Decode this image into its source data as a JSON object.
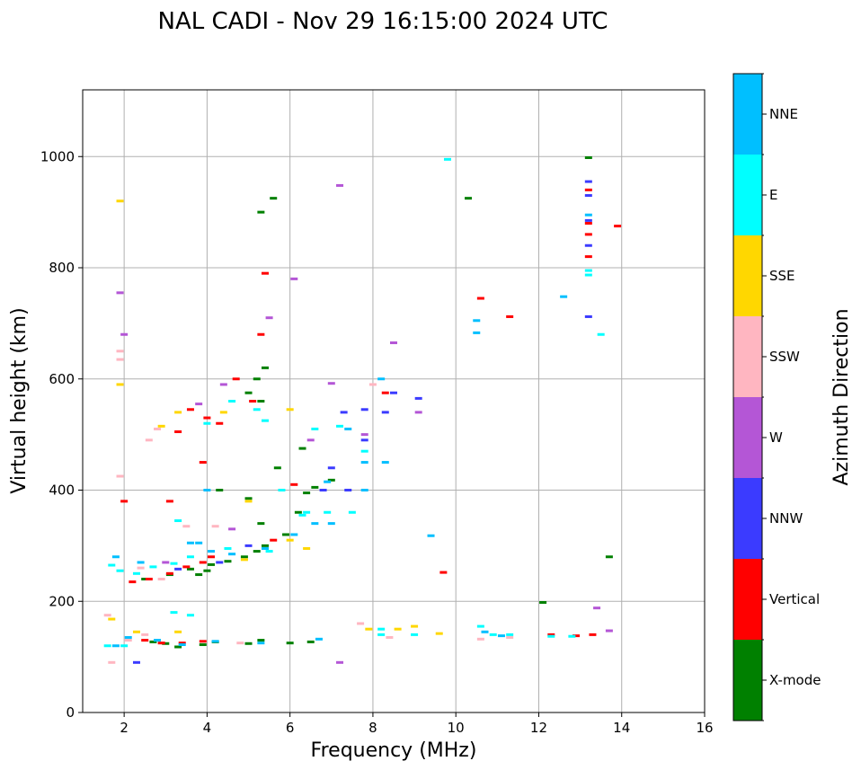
{
  "chart_data": {
    "type": "scatter",
    "title": "NAL CADI - Nov 29 16:15:00 2024 UTC",
    "xlabel": "Frequency (MHz)",
    "ylabel": "Virtual height (km)",
    "xlim": [
      1,
      16
    ],
    "ylim": [
      0,
      1120
    ],
    "xticks": [
      "2",
      "4",
      "6",
      "8",
      "10",
      "12",
      "14",
      "16"
    ],
    "yticks": [
      "0",
      "200",
      "400",
      "600",
      "800",
      "1000"
    ],
    "grid": true,
    "colorbar": {
      "title": "Azimuth Direction",
      "categories": [
        {
          "name": "X-mode",
          "color": "#008000"
        },
        {
          "name": "Vertical",
          "color": "#ff0000"
        },
        {
          "name": "NNW",
          "color": "#3b3bff"
        },
        {
          "name": "W",
          "color": "#b456d6"
        },
        {
          "name": "SSW",
          "color": "#ffb6c1"
        },
        {
          "name": "SSE",
          "color": "#ffd700"
        },
        {
          "name": "E",
          "color": "#00ffff"
        },
        {
          "name": "NNE",
          "color": "#00bfff"
        }
      ]
    },
    "series": [
      {
        "name": "X-mode",
        "points": [
          [
            2.7,
            127
          ],
          [
            3.0,
            124
          ],
          [
            3.3,
            118
          ],
          [
            3.9,
            122
          ],
          [
            4.2,
            127
          ],
          [
            5.0,
            124
          ],
          [
            5.3,
            130
          ],
          [
            6.0,
            125
          ],
          [
            6.5,
            127
          ],
          [
            2.5,
            240
          ],
          [
            3.1,
            248
          ],
          [
            3.6,
            258
          ],
          [
            4.1,
            266
          ],
          [
            4.5,
            272
          ],
          [
            4.9,
            280
          ],
          [
            5.2,
            290
          ],
          [
            5.4,
            300
          ],
          [
            5.0,
            385
          ],
          [
            5.3,
            340
          ],
          [
            5.9,
            320
          ],
          [
            6.2,
            360
          ],
          [
            6.4,
            395
          ],
          [
            6.6,
            405
          ],
          [
            5.7,
            440
          ],
          [
            5.3,
            560
          ],
          [
            5.2,
            600
          ],
          [
            5.4,
            620
          ],
          [
            5.0,
            575
          ],
          [
            5.3,
            900
          ],
          [
            5.6,
            925
          ],
          [
            10.3,
            925
          ],
          [
            13.2,
            998
          ],
          [
            12.1,
            198
          ],
          [
            13.7,
            280
          ],
          [
            4.3,
            400
          ],
          [
            4.0,
            255
          ],
          [
            3.8,
            248
          ],
          [
            6.3,
            475
          ],
          [
            7.0,
            418
          ]
        ]
      },
      {
        "name": "Vertical",
        "points": [
          [
            2.2,
            235
          ],
          [
            2.6,
            240
          ],
          [
            3.1,
            250
          ],
          [
            3.5,
            262
          ],
          [
            3.9,
            270
          ],
          [
            4.1,
            280
          ],
          [
            4.0,
            530
          ],
          [
            3.6,
            545
          ],
          [
            3.3,
            505
          ],
          [
            3.9,
            450
          ],
          [
            2.9,
            125
          ],
          [
            3.4,
            125
          ],
          [
            3.9,
            128
          ],
          [
            2.5,
            130
          ],
          [
            5.3,
            680
          ],
          [
            5.4,
            790
          ],
          [
            5.1,
            560
          ],
          [
            4.7,
            600
          ],
          [
            9.7,
            252
          ],
          [
            10.6,
            745
          ],
          [
            11.3,
            712
          ],
          [
            13.2,
            940
          ],
          [
            13.2,
            880
          ],
          [
            13.2,
            860
          ],
          [
            13.2,
            820
          ],
          [
            13.9,
            875
          ],
          [
            13.3,
            140
          ],
          [
            12.9,
            138
          ],
          [
            12.3,
            140
          ],
          [
            3.1,
            380
          ],
          [
            2.0,
            380
          ],
          [
            4.3,
            520
          ],
          [
            6.1,
            410
          ],
          [
            8.3,
            575
          ],
          [
            5.6,
            310
          ]
        ]
      },
      {
        "name": "NNW",
        "points": [
          [
            8.5,
            575
          ],
          [
            8.3,
            540
          ],
          [
            9.1,
            565
          ],
          [
            7.8,
            545
          ],
          [
            7.8,
            490
          ],
          [
            7.4,
            400
          ],
          [
            7.0,
            440
          ],
          [
            13.2,
            712
          ],
          [
            13.2,
            955
          ],
          [
            13.2,
            930
          ],
          [
            13.2,
            885
          ],
          [
            13.2,
            840
          ],
          [
            2.3,
            90
          ],
          [
            4.3,
            270
          ],
          [
            5.0,
            300
          ],
          [
            3.3,
            258
          ],
          [
            6.8,
            400
          ],
          [
            7.3,
            540
          ]
        ]
      },
      {
        "name": "W",
        "points": [
          [
            1.9,
            755
          ],
          [
            2.0,
            680
          ],
          [
            5.5,
            710
          ],
          [
            7.2,
            948
          ],
          [
            6.1,
            780
          ],
          [
            7.0,
            592
          ],
          [
            8.5,
            665
          ],
          [
            9.1,
            540
          ],
          [
            13.4,
            188
          ],
          [
            13.7,
            147
          ],
          [
            7.2,
            90
          ],
          [
            4.4,
            590
          ],
          [
            3.8,
            555
          ],
          [
            6.5,
            490
          ],
          [
            7.8,
            500
          ],
          [
            3.0,
            270
          ],
          [
            4.6,
            330
          ]
        ]
      },
      {
        "name": "SSW",
        "points": [
          [
            1.6,
            175
          ],
          [
            1.7,
            90
          ],
          [
            2.1,
            130
          ],
          [
            2.5,
            140
          ],
          [
            2.6,
            490
          ],
          [
            2.8,
            510
          ],
          [
            1.9,
            650
          ],
          [
            1.9,
            635
          ],
          [
            1.9,
            425
          ],
          [
            3.5,
            335
          ],
          [
            4.2,
            335
          ],
          [
            4.8,
            125
          ],
          [
            7.7,
            160
          ],
          [
            8.4,
            135
          ],
          [
            8.0,
            590
          ],
          [
            11.3,
            135
          ],
          [
            10.6,
            132
          ],
          [
            2.4,
            260
          ],
          [
            2.9,
            240
          ]
        ]
      },
      {
        "name": "SSE",
        "points": [
          [
            1.9,
            920
          ],
          [
            1.9,
            590
          ],
          [
            2.9,
            515
          ],
          [
            3.3,
            540
          ],
          [
            4.4,
            540
          ],
          [
            4.9,
            275
          ],
          [
            5.0,
            380
          ],
          [
            6.0,
            545
          ],
          [
            6.4,
            295
          ],
          [
            7.9,
            150
          ],
          [
            8.6,
            150
          ],
          [
            9.0,
            155
          ],
          [
            9.6,
            142
          ],
          [
            1.7,
            168
          ],
          [
            2.3,
            145
          ],
          [
            3.3,
            145
          ],
          [
            6.0,
            310
          ]
        ]
      },
      {
        "name": "E",
        "points": [
          [
            1.7,
            265
          ],
          [
            1.9,
            255
          ],
          [
            2.3,
            250
          ],
          [
            2.7,
            262
          ],
          [
            3.2,
            268
          ],
          [
            3.6,
            280
          ],
          [
            4.5,
            295
          ],
          [
            5.5,
            290
          ],
          [
            3.3,
            345
          ],
          [
            3.6,
            175
          ],
          [
            3.2,
            180
          ],
          [
            4.0,
            520
          ],
          [
            4.6,
            560
          ],
          [
            5.2,
            545
          ],
          [
            5.8,
            400
          ],
          [
            6.3,
            355
          ],
          [
            6.9,
            360
          ],
          [
            6.6,
            510
          ],
          [
            7.2,
            515
          ],
          [
            7.8,
            470
          ],
          [
            8.2,
            150
          ],
          [
            8.2,
            140
          ],
          [
            9.0,
            140
          ],
          [
            10.6,
            155
          ],
          [
            10.9,
            140
          ],
          [
            11.3,
            140
          ],
          [
            12.3,
            137
          ],
          [
            12.8,
            137
          ],
          [
            13.2,
            795
          ],
          [
            13.2,
            787
          ],
          [
            13.5,
            680
          ],
          [
            9.8,
            995
          ],
          [
            6.4,
            360
          ],
          [
            5.4,
            525
          ],
          [
            7.5,
            360
          ],
          [
            2.0,
            120
          ],
          [
            1.6,
            120
          ]
        ]
      },
      {
        "name": "NNE",
        "points": [
          [
            1.8,
            120
          ],
          [
            2.1,
            135
          ],
          [
            2.8,
            130
          ],
          [
            3.4,
            122
          ],
          [
            4.2,
            128
          ],
          [
            5.3,
            125
          ],
          [
            6.7,
            132
          ],
          [
            1.8,
            280
          ],
          [
            2.4,
            270
          ],
          [
            3.6,
            305
          ],
          [
            4.1,
            290
          ],
          [
            4.6,
            285
          ],
          [
            5.4,
            295
          ],
          [
            6.1,
            320
          ],
          [
            6.6,
            340
          ],
          [
            7.0,
            340
          ],
          [
            6.9,
            415
          ],
          [
            7.4,
            510
          ],
          [
            7.8,
            450
          ],
          [
            8.2,
            600
          ],
          [
            8.3,
            450
          ],
          [
            9.4,
            318
          ],
          [
            10.5,
            705
          ],
          [
            10.5,
            683
          ],
          [
            10.7,
            145
          ],
          [
            11.1,
            138
          ],
          [
            12.6,
            748
          ],
          [
            13.2,
            895
          ],
          [
            4.0,
            400
          ],
          [
            3.8,
            305
          ],
          [
            7.8,
            400
          ]
        ]
      }
    ]
  }
}
